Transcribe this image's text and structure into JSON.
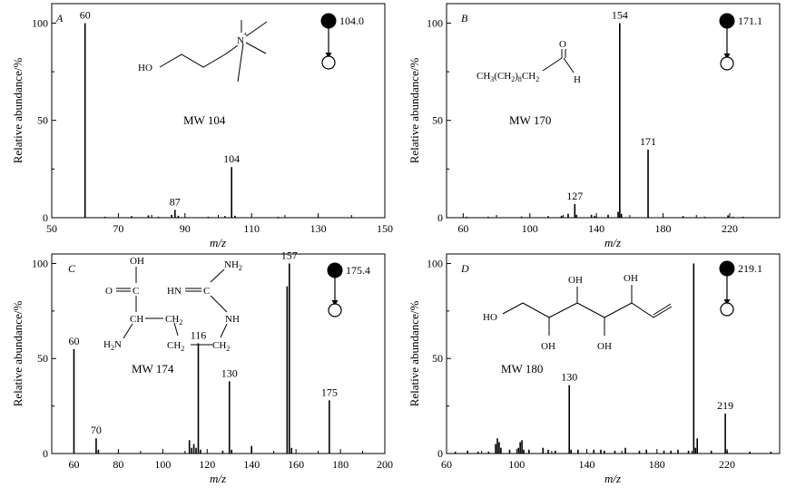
{
  "chart_data": [
    {
      "type": "bar",
      "panel": "A",
      "xlabel": "m/z",
      "ylabel": "Relative abundance/%",
      "xlim": [
        50,
        150
      ],
      "ylim": [
        0,
        110
      ],
      "xticks": [
        50,
        70,
        90,
        110,
        130,
        150
      ],
      "yticks": [
        0,
        50,
        100
      ],
      "peaks": [
        {
          "mz": 60,
          "abundance": 100
        },
        {
          "mz": 66,
          "abundance": 0.5
        },
        {
          "mz": 74,
          "abundance": 0.8
        },
        {
          "mz": 79,
          "abundance": 1.2
        },
        {
          "mz": 82,
          "abundance": 0.5
        },
        {
          "mz": 86,
          "abundance": 1.5
        },
        {
          "mz": 87,
          "abundance": 4
        },
        {
          "mz": 88,
          "abundance": 1
        },
        {
          "mz": 97,
          "abundance": 0.5
        },
        {
          "mz": 102,
          "abundance": 0.8
        },
        {
          "mz": 104,
          "abundance": 26
        },
        {
          "mz": 105,
          "abundance": 1
        },
        {
          "mz": 118,
          "abundance": 0.5
        },
        {
          "mz": 130,
          "abundance": 0.5
        }
      ],
      "peak_labels": [
        {
          "mz": 60,
          "text": "60"
        },
        {
          "mz": 87,
          "text": "87"
        },
        {
          "mz": 104,
          "text": "104"
        }
      ],
      "mw": "MW 104",
      "precursor": "104.0",
      "structure_labels": [
        "HO",
        "N",
        "+"
      ]
    },
    {
      "type": "bar",
      "panel": "B",
      "xlabel": "m/z",
      "ylabel": "Relative abundance/%",
      "xlim": [
        50,
        250
      ],
      "ylim": [
        0,
        110
      ],
      "xticks": [
        60,
        100,
        140,
        180,
        220
      ],
      "yticks": [
        0,
        50,
        100
      ],
      "peaks": [
        {
          "mz": 62,
          "abundance": 0.5
        },
        {
          "mz": 75,
          "abundance": 0.5
        },
        {
          "mz": 95,
          "abundance": 0.6
        },
        {
          "mz": 111,
          "abundance": 0.8
        },
        {
          "mz": 119,
          "abundance": 1
        },
        {
          "mz": 123,
          "abundance": 2
        },
        {
          "mz": 127,
          "abundance": 7
        },
        {
          "mz": 128,
          "abundance": 1.5
        },
        {
          "mz": 137,
          "abundance": 1.5
        },
        {
          "mz": 139,
          "abundance": 1
        },
        {
          "mz": 147,
          "abundance": 1.5
        },
        {
          "mz": 153,
          "abundance": 3
        },
        {
          "mz": 154,
          "abundance": 100
        },
        {
          "mz": 155,
          "abundance": 2
        },
        {
          "mz": 171,
          "abundance": 35
        },
        {
          "mz": 192,
          "abundance": 0.8
        },
        {
          "mz": 205,
          "abundance": 0.5
        },
        {
          "mz": 219,
          "abundance": 1.2
        },
        {
          "mz": 222,
          "abundance": 0.5
        },
        {
          "mz": 228,
          "abundance": 0.5
        }
      ],
      "peak_labels": [
        {
          "mz": 127,
          "text": "127"
        },
        {
          "mz": 154,
          "text": "154"
        },
        {
          "mz": 171,
          "text": "171"
        }
      ],
      "mw": "MW 170",
      "precursor": "171.1",
      "structure_labels": [
        "CH",
        "3",
        "(CH",
        "2",
        ")",
        "8",
        "CH",
        "2",
        "O",
        "H"
      ]
    },
    {
      "type": "bar",
      "panel": "C",
      "xlabel": "m/z",
      "ylabel": "Relative abundance/%",
      "xlim": [
        50,
        200
      ],
      "ylim": [
        0,
        105
      ],
      "xticks": [
        60,
        80,
        100,
        120,
        140,
        160,
        180,
        200
      ],
      "yticks": [
        0,
        50,
        100
      ],
      "peaks": [
        {
          "mz": 60,
          "abundance": 55
        },
        {
          "mz": 70,
          "abundance": 8
        },
        {
          "mz": 71,
          "abundance": 2
        },
        {
          "mz": 112,
          "abundance": 7
        },
        {
          "mz": 113,
          "abundance": 3
        },
        {
          "mz": 114,
          "abundance": 5
        },
        {
          "mz": 115,
          "abundance": 3
        },
        {
          "mz": 116,
          "abundance": 58
        },
        {
          "mz": 117,
          "abundance": 2
        },
        {
          "mz": 127,
          "abundance": 1.5
        },
        {
          "mz": 130,
          "abundance": 38
        },
        {
          "mz": 131,
          "abundance": 2
        },
        {
          "mz": 140,
          "abundance": 4
        },
        {
          "mz": 156,
          "abundance": 88
        },
        {
          "mz": 157,
          "abundance": 100
        },
        {
          "mz": 158,
          "abundance": 3
        },
        {
          "mz": 175,
          "abundance": 28
        }
      ],
      "peak_labels": [
        {
          "mz": 60,
          "text": "60"
        },
        {
          "mz": 70,
          "text": "70"
        },
        {
          "mz": 116,
          "text": "116"
        },
        {
          "mz": 130,
          "text": "130"
        },
        {
          "mz": 157,
          "text": "157"
        },
        {
          "mz": 175,
          "text": "175"
        }
      ],
      "mw": "MW 174",
      "precursor": "175.4",
      "structure_labels": [
        "OH",
        "O",
        "C",
        "CH",
        "H",
        "2",
        "N",
        "NH",
        "2",
        "HN",
        "C",
        "NH",
        "CH",
        "2",
        "CH",
        "2",
        "CH",
        "2"
      ]
    },
    {
      "type": "bar",
      "panel": "D",
      "xlabel": "m/z",
      "ylabel": "Relative abundance/%",
      "xlim": [
        60,
        250
      ],
      "ylim": [
        0,
        105
      ],
      "xticks": [
        60,
        100,
        140,
        180,
        220
      ],
      "yticks": [
        0,
        50,
        100
      ],
      "peaks": [
        {
          "mz": 65,
          "abundance": 1
        },
        {
          "mz": 72,
          "abundance": 1.5
        },
        {
          "mz": 78,
          "abundance": 1
        },
        {
          "mz": 84,
          "abundance": 1
        },
        {
          "mz": 88,
          "abundance": 5
        },
        {
          "mz": 89,
          "abundance": 8
        },
        {
          "mz": 90,
          "abundance": 6
        },
        {
          "mz": 91,
          "abundance": 3
        },
        {
          "mz": 96,
          "abundance": 2
        },
        {
          "mz": 101,
          "abundance": 3
        },
        {
          "mz": 102,
          "abundance": 6
        },
        {
          "mz": 103,
          "abundance": 7
        },
        {
          "mz": 104,
          "abundance": 2
        },
        {
          "mz": 107,
          "abundance": 2
        },
        {
          "mz": 115,
          "abundance": 3
        },
        {
          "mz": 118,
          "abundance": 2
        },
        {
          "mz": 122,
          "abundance": 1.5
        },
        {
          "mz": 130,
          "abundance": 36
        },
        {
          "mz": 131,
          "abundance": 2
        },
        {
          "mz": 135,
          "abundance": 2
        },
        {
          "mz": 144,
          "abundance": 2
        },
        {
          "mz": 148,
          "abundance": 2
        },
        {
          "mz": 150,
          "abundance": 1.5
        },
        {
          "mz": 156,
          "abundance": 1.5
        },
        {
          "mz": 162,
          "abundance": 3
        },
        {
          "mz": 170,
          "abundance": 1.5
        },
        {
          "mz": 174,
          "abundance": 2
        },
        {
          "mz": 184,
          "abundance": 1.5
        },
        {
          "mz": 188,
          "abundance": 1.5
        },
        {
          "mz": 192,
          "abundance": 2
        },
        {
          "mz": 198,
          "abundance": 1.5
        },
        {
          "mz": 201,
          "abundance": 100
        },
        {
          "mz": 202,
          "abundance": 3
        },
        {
          "mz": 203,
          "abundance": 8
        },
        {
          "mz": 211,
          "abundance": 1.5
        },
        {
          "mz": 219,
          "abundance": 21
        },
        {
          "mz": 220,
          "abundance": 1.5
        },
        {
          "mz": 233,
          "abundance": 1
        },
        {
          "mz": 245,
          "abundance": 1
        }
      ],
      "peak_labels": [
        {
          "mz": 130,
          "text": "130"
        },
        {
          "mz": 219,
          "text": "219"
        }
      ],
      "mw": "MW 180",
      "precursor": "219.1",
      "structure_labels": [
        "OH",
        "OH",
        "HO",
        "OH",
        "OH"
      ]
    }
  ]
}
